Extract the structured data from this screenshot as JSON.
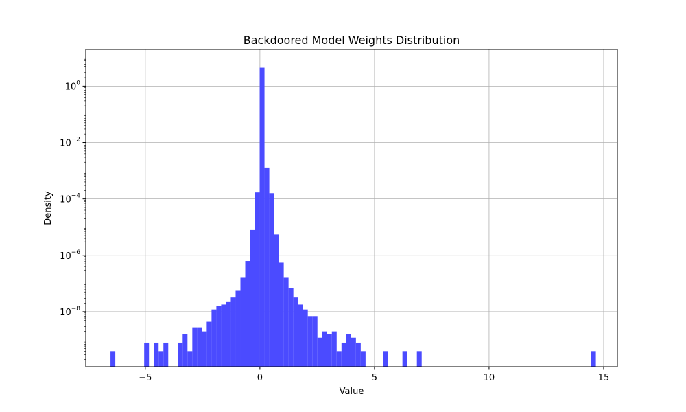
{
  "chart_data": {
    "type": "bar",
    "subtype": "histogram",
    "title": "Backdoored Model Weights Distribution",
    "xlabel": "Value",
    "ylabel": "Density",
    "yscale": "log",
    "xlim": [
      -7.6,
      15.6
    ],
    "ylim_log10": [
      -9.95,
      1.3
    ],
    "bin_width": 0.21,
    "x_ticks": [
      -5,
      0,
      5,
      10,
      15
    ],
    "x_tick_labels": [
      "−5",
      "0",
      "5",
      "10",
      "15"
    ],
    "y_ticks_log10": [
      -8,
      -6,
      -4,
      -2,
      0
    ],
    "grid": true,
    "bar_color": "#4b4bff",
    "bins": [
      {
        "x": -6.52,
        "density": 4e-10
      },
      {
        "x": -5.05,
        "density": 8e-10
      },
      {
        "x": -4.63,
        "density": 8e-10
      },
      {
        "x": -4.42,
        "density": 4e-10
      },
      {
        "x": -4.21,
        "density": 8e-10
      },
      {
        "x": -3.58,
        "density": 8e-10
      },
      {
        "x": -3.37,
        "density": 1.6e-09
      },
      {
        "x": -3.16,
        "density": 4e-10
      },
      {
        "x": -2.95,
        "density": 2.8e-09
      },
      {
        "x": -2.74,
        "density": 2.8e-09
      },
      {
        "x": -2.53,
        "density": 2e-09
      },
      {
        "x": -2.32,
        "density": 4.4e-09
      },
      {
        "x": -2.11,
        "density": 1.2e-08
      },
      {
        "x": -1.9,
        "density": 1.6e-08
      },
      {
        "x": -1.69,
        "density": 1.8e-08
      },
      {
        "x": -1.48,
        "density": 2.2e-08
      },
      {
        "x": -1.27,
        "density": 3.2e-08
      },
      {
        "x": -1.06,
        "density": 5.5e-08
      },
      {
        "x": -0.85,
        "density": 1.6e-07
      },
      {
        "x": -0.64,
        "density": 6.3e-07
      },
      {
        "x": -0.43,
        "density": 7.9e-06
      },
      {
        "x": -0.22,
        "density": 0.00017
      },
      {
        "x": -0.01,
        "density": 4.5
      },
      {
        "x": 0.2,
        "density": 0.0013
      },
      {
        "x": 0.41,
        "density": 0.00016
      },
      {
        "x": 0.62,
        "density": 5.5e-06
      },
      {
        "x": 0.83,
        "density": 5.5e-07
      },
      {
        "x": 1.04,
        "density": 1.6e-07
      },
      {
        "x": 1.25,
        "density": 7e-08
      },
      {
        "x": 1.46,
        "density": 3.2e-08
      },
      {
        "x": 1.67,
        "density": 1.8e-08
      },
      {
        "x": 1.88,
        "density": 1.2e-08
      },
      {
        "x": 2.09,
        "density": 7e-09
      },
      {
        "x": 2.3,
        "density": 7e-09
      },
      {
        "x": 2.51,
        "density": 1.2e-09
      },
      {
        "x": 2.72,
        "density": 2e-09
      },
      {
        "x": 2.93,
        "density": 1.6e-09
      },
      {
        "x": 3.14,
        "density": 2e-09
      },
      {
        "x": 3.35,
        "density": 4e-10
      },
      {
        "x": 3.56,
        "density": 8e-10
      },
      {
        "x": 3.77,
        "density": 1.6e-09
      },
      {
        "x": 3.98,
        "density": 1.2e-09
      },
      {
        "x": 4.19,
        "density": 8e-10
      },
      {
        "x": 4.4,
        "density": 4e-10
      },
      {
        "x": 5.38,
        "density": 4e-10
      },
      {
        "x": 6.22,
        "density": 4e-10
      },
      {
        "x": 6.85,
        "density": 4e-10
      },
      {
        "x": 14.45,
        "density": 4e-10
      }
    ]
  }
}
